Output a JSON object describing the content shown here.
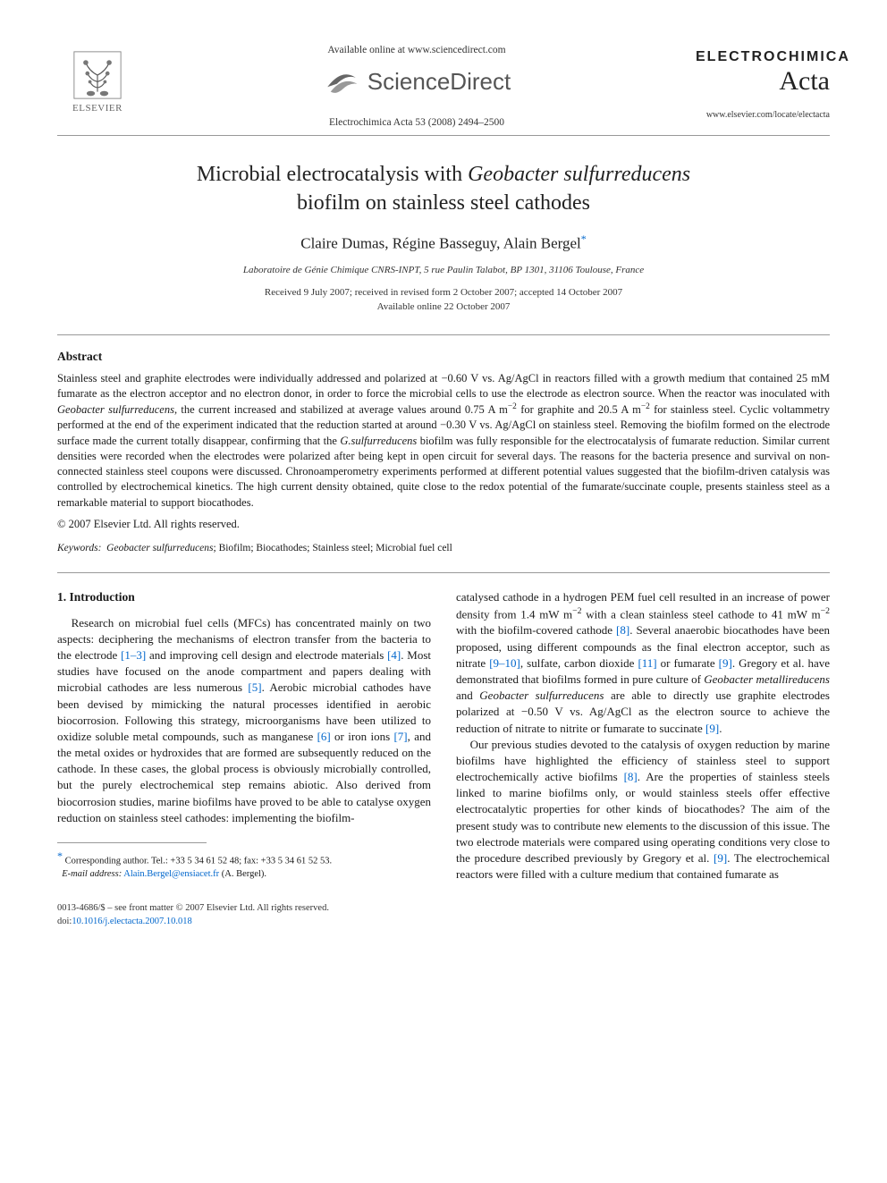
{
  "header": {
    "available_line": "Available online at www.sciencedirect.com",
    "sd_brand": "ScienceDirect",
    "journal_ref": "Electrochimica Acta 53 (2008) 2494–2500",
    "elsevier_label": "ELSEVIER",
    "journal_name_1": "ELECTROCHIMICA",
    "journal_name_2": "Acta",
    "journal_url": "www.elsevier.com/locate/electacta"
  },
  "title": {
    "line1_pre": "Microbial electrocatalysis with ",
    "line1_ital": "Geobacter sulfurreducens",
    "line2": "biofilm on stainless steel cathodes"
  },
  "authors": "Claire Dumas, Régine Basseguy, Alain Bergel",
  "affiliation": "Laboratoire de Génie Chimique CNRS-INPT, 5 rue Paulin Talabot, BP 1301, 31106 Toulouse, France",
  "dates": {
    "line1": "Received 9 July 2007; received in revised form 2 October 2007; accepted 14 October 2007",
    "line2": "Available online 22 October 2007"
  },
  "abstract": {
    "heading": "Abstract",
    "body_html": "Stainless steel and graphite electrodes were individually addressed and polarized at −0.60 V vs. Ag/AgCl in reactors filled with a growth medium that contained 25 mM fumarate as the electron acceptor and no electron donor, in order to force the microbial cells to use the electrode as electron source. When the reactor was inoculated with <i>Geobacter sulfurreducens</i>, the current increased and stabilized at average values around 0.75 A m<sup>−2</sup> for graphite and 20.5 A m<sup>−2</sup> for stainless steel. Cyclic voltammetry performed at the end of the experiment indicated that the reduction started at around −0.30 V vs. Ag/AgCl on stainless steel. Removing the biofilm formed on the electrode surface made the current totally disappear, confirming that the <i>G.sulfurreducens</i> biofilm was fully responsible for the electrocatalysis of fumarate reduction. Similar current densities were recorded when the electrodes were polarized after being kept in open circuit for several days. The reasons for the bacteria presence and survival on non-connected stainless steel coupons were discussed. Chronoamperometry experiments performed at different potential values suggested that the biofilm-driven catalysis was controlled by electrochemical kinetics. The high current density obtained, quite close to the redox potential of the fumarate/succinate couple, presents stainless steel as a remarkable material to support biocathodes.",
    "copyright": "© 2007 Elsevier Ltd. All rights reserved."
  },
  "keywords": {
    "label": "Keywords:",
    "list": "Geobacter sulfurreducens; Biofilm; Biocathodes; Stainless steel; Microbial fuel cell"
  },
  "section1": {
    "heading": "1. Introduction",
    "p1_html": "Research on microbial fuel cells (MFCs) has concentrated mainly on two aspects: deciphering the mechanisms of electron transfer from the bacteria to the electrode <span class=\"ref-link\">[1–3]</span> and improving cell design and electrode materials <span class=\"ref-link\">[4]</span>. Most studies have focused on the anode compartment and papers dealing with microbial cathodes are less numerous <span class=\"ref-link\">[5]</span>. Aerobic microbial cathodes have been devised by mimicking the natural processes identified in aerobic biocorrosion. Following this strategy, microorganisms have been utilized to oxidize soluble metal compounds, such as manganese <span class=\"ref-link\">[6]</span> or iron ions <span class=\"ref-link\">[7]</span>, and the metal oxides or hydroxides that are formed are subsequently reduced on the cathode. In these cases, the global process is obviously microbially controlled, but the purely electrochemical step remains abiotic. Also derived from biocorrosion studies, marine biofilms have proved to be able to catalyse oxygen reduction on stainless steel cathodes: implementing the biofilm-",
    "p1b_html": "catalysed cathode in a hydrogen PEM fuel cell resulted in an increase of power density from 1.4 mW m<sup>−2</sup> with a clean stainless steel cathode to 41 mW m<sup>−2</sup> with the biofilm-covered cathode <span class=\"ref-link\">[8]</span>. Several anaerobic biocathodes have been proposed, using different compounds as the final electron acceptor, such as nitrate <span class=\"ref-link\">[9–10]</span>, sulfate, carbon dioxide <span class=\"ref-link\">[11]</span> or fumarate <span class=\"ref-link\">[9]</span>. Gregory et al. have demonstrated that biofilms formed in pure culture of <i>Geobacter metallireducens</i> and <i>Geobacter sulfurreducens</i> are able to directly use graphite electrodes polarized at −0.50 V vs. Ag/AgCl as the electron source to achieve the reduction of nitrate to nitrite or fumarate to succinate <span class=\"ref-link\">[9]</span>.",
    "p2_html": "Our previous studies devoted to the catalysis of oxygen reduction by marine biofilms have highlighted the efficiency of stainless steel to support electrochemically active biofilms <span class=\"ref-link\">[8]</span>. Are the properties of stainless steels linked to marine biofilms only, or would stainless steels offer effective electrocatalytic properties for other kinds of biocathodes? The aim of the present study was to contribute new elements to the discussion of this issue. The two electrode materials were compared using operating conditions very close to the procedure described previously by Gregory et al. <span class=\"ref-link\">[9]</span>. The electrochemical reactors were filled with a culture medium that contained fumarate as"
  },
  "footnote": {
    "corr": "Corresponding author. Tel.: +33 5 34 61 52 48; fax: +33 5 34 61 52 53.",
    "email_label": "E-mail address:",
    "email": "Alain.Bergel@ensiacet.fr",
    "email_suffix": "(A. Bergel)."
  },
  "footer": {
    "issn": "0013-4686/$ – see front matter © 2007 Elsevier Ltd. All rights reserved.",
    "doi_label": "doi:",
    "doi": "10.1016/j.electacta.2007.10.018"
  },
  "colors": {
    "link": "#0066cc",
    "text": "#1a1a1a",
    "rule": "#999999"
  }
}
